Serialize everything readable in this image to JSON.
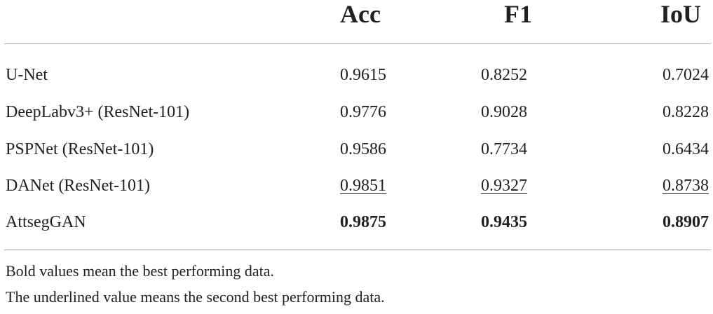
{
  "table": {
    "columns": [
      "Acc",
      "F1",
      "IoU"
    ],
    "rows": [
      {
        "name": "U-Net",
        "acc": "0.9615",
        "f1": "0.8252",
        "iou": "0.7024",
        "style": "normal"
      },
      {
        "name": "DeepLabv3+ (ResNet-101)",
        "acc": "0.9776",
        "f1": "0.9028",
        "iou": "0.8228",
        "style": "normal"
      },
      {
        "name": "PSPNet (ResNet-101)",
        "acc": "0.9586",
        "f1": "0.7734",
        "iou": "0.6434",
        "style": "normal"
      },
      {
        "name": "DANet (ResNet-101)",
        "acc": "0.9851",
        "f1": "0.9327",
        "iou": "0.8738",
        "style": "second"
      },
      {
        "name": "AttsegGAN",
        "acc": "0.9875",
        "f1": "0.9435",
        "iou": "0.8907",
        "style": "best"
      }
    ]
  },
  "notes": [
    "Bold values mean the best performing data.",
    "The underlined value means the second best performing data."
  ]
}
